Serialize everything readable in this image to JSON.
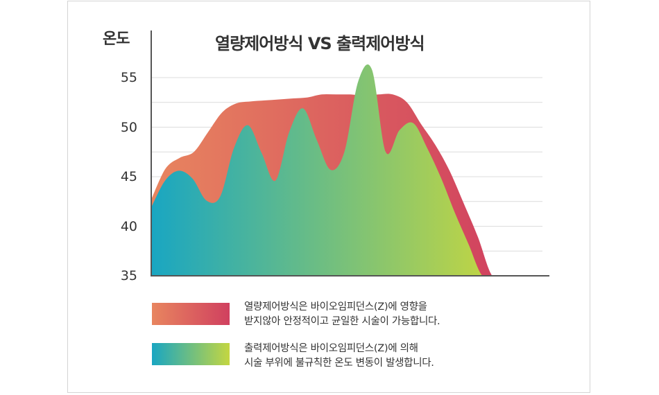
{
  "chart_data": {
    "type": "area",
    "title": "열량제어방식 VS 출력제어방식",
    "ylabel": "온도",
    "ylim": [
      35,
      56
    ],
    "yticks": [
      "35",
      "40",
      "45",
      "50",
      "55"
    ],
    "x": [
      0,
      4,
      8,
      12,
      16,
      20,
      24,
      28,
      32,
      36,
      40,
      44,
      48,
      52,
      56,
      60,
      64,
      68,
      72,
      76,
      80,
      84,
      88,
      92,
      96,
      100
    ],
    "grid": true,
    "series": [
      {
        "name": "열량제어방식",
        "colors": [
          "#e8855f",
          "#d0405f"
        ],
        "values": [
          42.7,
          45.8,
          46.9,
          47.5,
          49.5,
          51.5,
          52.4,
          52.6,
          52.7,
          52.8,
          52.9,
          53.0,
          53.3,
          53.3,
          53.3,
          53.2,
          53.3,
          53.3,
          52.5,
          50.3,
          48.2,
          45.6,
          42.3,
          38.9,
          35.0,
          35.0
        ]
      },
      {
        "name": "출력제어방식",
        "colors": [
          "#19a6c2",
          "#c4d641"
        ],
        "values": [
          41.9,
          44.6,
          45.6,
          44.8,
          42.6,
          43.0,
          47.9,
          50.2,
          47.4,
          44.6,
          49.5,
          51.9,
          48.7,
          45.7,
          47.5,
          54.6,
          55.8,
          47.5,
          49.7,
          50.4,
          47.9,
          44.9,
          41.4,
          38.2,
          35.0,
          35.0
        ]
      }
    ],
    "legend": [
      {
        "line1": "열량제어방식은 바이오임피던스(Z)에 영향을",
        "line2": "받지않아 안정적이고 균일한 시술이 가능합니다."
      },
      {
        "line1": "출력제어방식은 바이오임피던스(Z)에 의해",
        "line2": "시술 부위에 불규칙한 온도 변동이 발생합니다."
      }
    ],
    "legend_placement": "bottom"
  }
}
